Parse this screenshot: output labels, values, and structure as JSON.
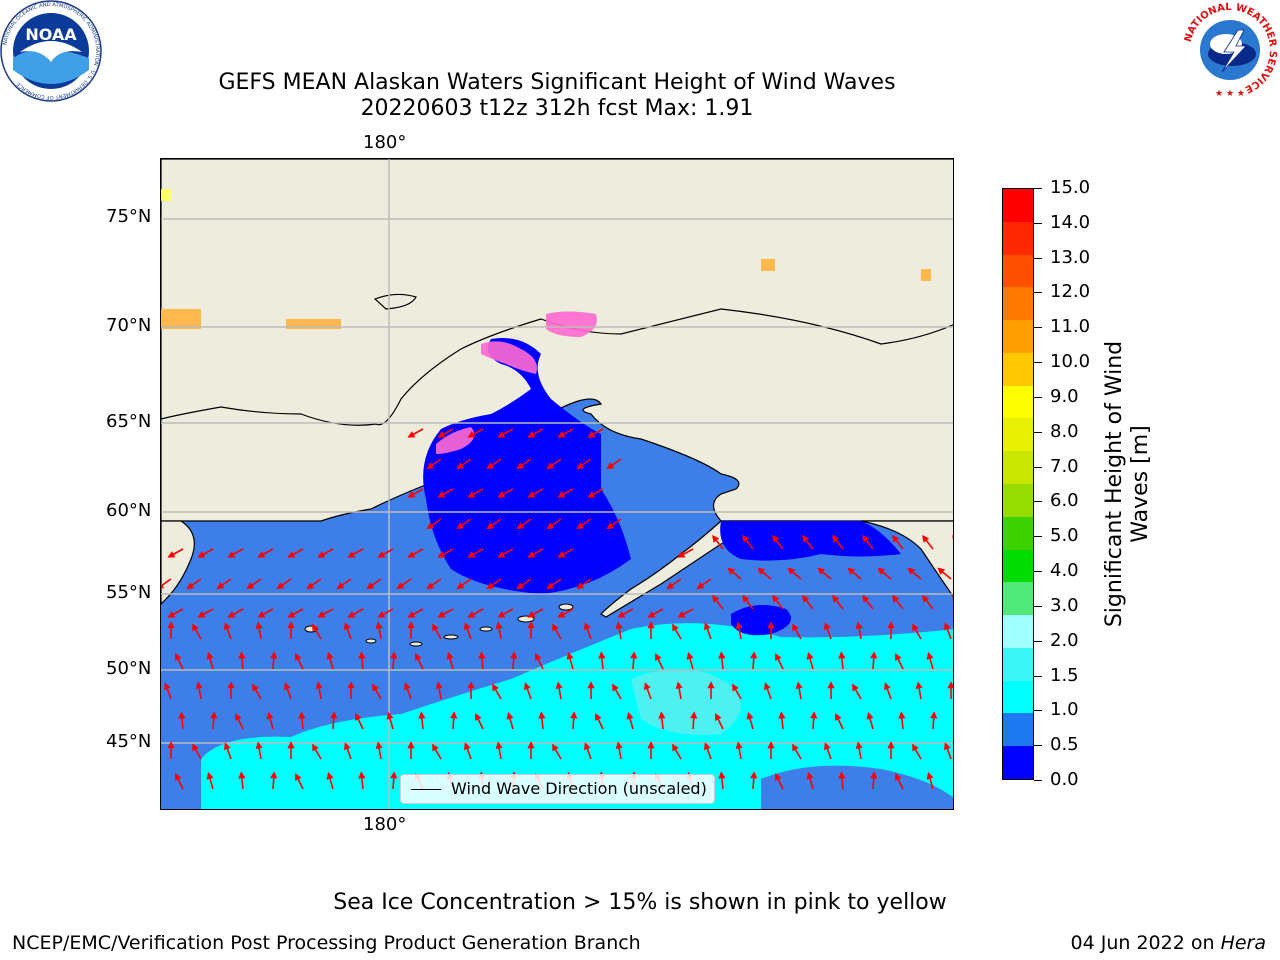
{
  "header": {
    "title_line1": "GEFS MEAN Alaskan Waters Significant Height of Wind Waves",
    "title_line2": "20220603 t12z 312h fcst   Max: 1.91",
    "noaa_logo_text": "NOAA",
    "noaa_ring_text": "NATIONAL OCEANIC AND ATMOSPHERIC ADMINISTRATION · U.S. DEPARTMENT OF COMMERCE",
    "nws_ring_text": "NATIONAL WEATHER SERVICE"
  },
  "map": {
    "lon_label_top": "180°",
    "lon_label_bottom": "180°",
    "lat_labels": [
      "75°N",
      "70°N",
      "65°N",
      "60°N",
      "55°N",
      "50°N",
      "45°N"
    ],
    "legend_label": "Wind Wave Direction (unscaled)",
    "colors": {
      "land": "#eeecdc",
      "deep_blue": "#0000ff",
      "mid_blue": "#3d7ee8",
      "cyan": "#00ffff",
      "light_cyan": "#4ef0f0",
      "arrow": "#ff0000",
      "ice_pink": "#ff69d0",
      "ice_orange": "#ffb84d",
      "ice_yellow": "#ffff66"
    }
  },
  "colorbar": {
    "label": "Significant Height of Wind Waves [m]",
    "ticks": [
      "0.0",
      "0.5",
      "1.0",
      "1.5",
      "2.0",
      "3.0",
      "4.0",
      "5.0",
      "6.0",
      "7.0",
      "8.0",
      "9.0",
      "10.0",
      "11.0",
      "12.0",
      "13.0",
      "14.0",
      "15.0"
    ],
    "colors": [
      "#0000ff",
      "#1e78f0",
      "#00ffff",
      "#3cf5f5",
      "#a0ffff",
      "#50e878",
      "#00dc00",
      "#3cd200",
      "#96dc00",
      "#c8e600",
      "#e6f000",
      "#ffff00",
      "#ffc800",
      "#ffa000",
      "#ff7800",
      "#ff5000",
      "#ff2800",
      "#ff0000"
    ]
  },
  "footer": {
    "sea_ice_note": "Sea Ice Concentration > 15% is shown in pink to yellow",
    "branch": "NCEP/EMC/Verification Post Processing Product Generation Branch",
    "date_text": "04 Jun 2022 on ",
    "date_machine": "Hera"
  }
}
